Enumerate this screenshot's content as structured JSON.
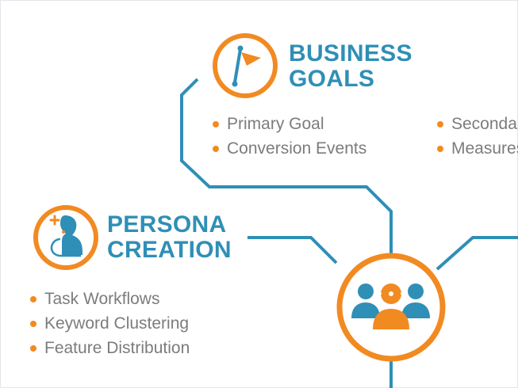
{
  "colors": {
    "accent": "#f28a22",
    "primary": "#2f8fb6",
    "text": "#7c7c7c",
    "background": "#ffffff"
  },
  "business_goals": {
    "title_line1": "BUSINESS",
    "title_line2": "GOALS",
    "icon": "flag-icon",
    "items_left": [
      "Primary Goal",
      "Conversion Events"
    ],
    "items_right": [
      "Secondary Goals",
      "Measures"
    ]
  },
  "persona_creation": {
    "title_line1": "PERSONA",
    "title_line2": "CREATION",
    "icon": "persona-icon",
    "items": [
      "Task Workflows",
      "Keyword Clustering",
      "Feature Distribution"
    ]
  },
  "hub": {
    "icon": "users-group-icon"
  }
}
